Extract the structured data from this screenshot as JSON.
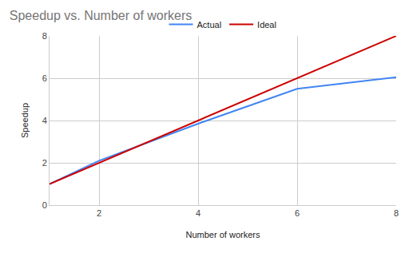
{
  "chart_data": {
    "type": "line",
    "title": "Speedup vs. Number of workers",
    "x_label": "Number of workers",
    "y_label": "Speedup",
    "x": [
      1,
      2,
      4,
      6,
      8
    ],
    "series": [
      {
        "name": "Actual",
        "color": "#4285f4",
        "values": [
          1,
          2.1,
          3.85,
          5.5,
          6.05
        ]
      },
      {
        "name": "Ideal",
        "color": "#cc0000",
        "values": [
          1,
          2,
          4,
          6,
          8
        ]
      }
    ],
    "xlim": [
      1,
      8
    ],
    "xticks": [
      2,
      4,
      6,
      8
    ],
    "ylim": [
      0,
      8
    ],
    "yticks": [
      0,
      2,
      4,
      6,
      8
    ],
    "grid": true,
    "legend": "top"
  }
}
